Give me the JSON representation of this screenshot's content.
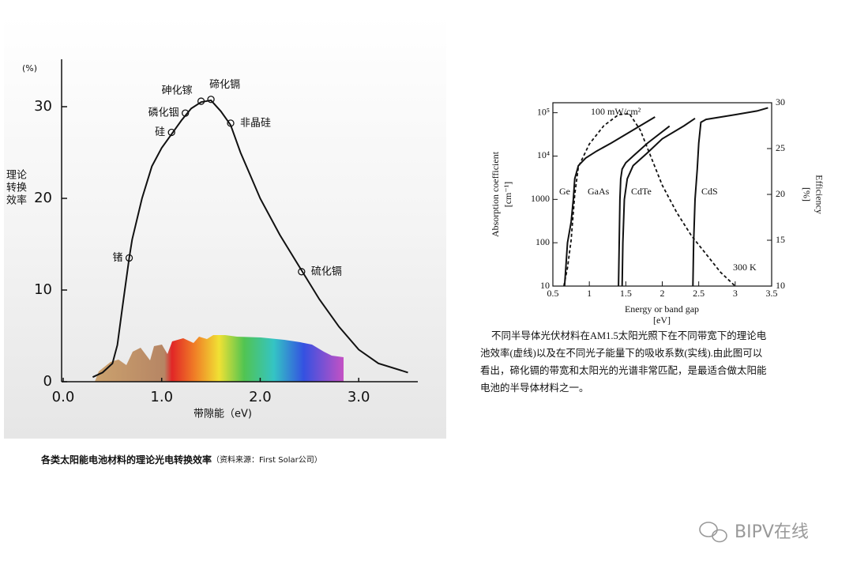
{
  "chart_data": [
    {
      "type": "line",
      "y_unit": "(%)",
      "ylabel": [
        "理论",
        "转换",
        "效率"
      ],
      "xlabel": "带隙能（eV)",
      "xlim": [
        0,
        3.6
      ],
      "ylim": [
        0,
        35
      ],
      "xticks": [
        {
          "value": 0,
          "label": "0.0"
        },
        {
          "value": 1,
          "label": "1.0"
        },
        {
          "value": 2,
          "label": "2.0"
        },
        {
          "value": 3,
          "label": "3.0"
        }
      ],
      "yticks": [
        0,
        10,
        20,
        30
      ],
      "series": [
        {
          "color": "#111111",
          "x": [
            0.3,
            0.4,
            0.5,
            0.55,
            0.6,
            0.67,
            0.7,
            0.8,
            0.9,
            1.0,
            1.1,
            1.2,
            1.3,
            1.4,
            1.5,
            1.6,
            1.7,
            1.8,
            1.9,
            2.0,
            2.2,
            2.4,
            2.6,
            2.8,
            3.0,
            3.2,
            3.5
          ],
          "values": [
            0.5,
            1,
            2,
            4,
            8,
            13.5,
            15.5,
            20,
            23.5,
            25.5,
            27,
            28.5,
            29.8,
            30.5,
            30.7,
            29.5,
            28,
            25,
            22.5,
            20,
            16,
            12.5,
            9,
            6,
            3.5,
            2,
            1
          ]
        }
      ],
      "points": {
        "labels": [
          "锗",
          "硅",
          "磷化铟",
          "砷化镓",
          "碲化镉",
          "非晶硅",
          "硫化镉"
        ],
        "x": [
          0.67,
          1.1,
          1.24,
          1.4,
          1.5,
          1.7,
          2.42
        ],
        "values": [
          13.5,
          27.2,
          29.3,
          30.6,
          30.8,
          28.2,
          12
        ]
      },
      "caption": {
        "title": "各类太阳能电池材料的理论光电转换效率",
        "source": "（资料来源：First Solar公司）"
      }
    },
    {
      "type": "line",
      "log_y": true,
      "ylabel": [
        "Absorption coefficient",
        "[cm⁻¹]"
      ],
      "y2label": [
        "Efficiency",
        "[%]"
      ],
      "xlabel": [
        "Energy or band gap",
        "[eV]"
      ],
      "xlim": [
        0.5,
        3.5
      ],
      "ylim": [
        10,
        170000
      ],
      "y2lim": [
        10,
        30
      ],
      "xticks": [
        0.5,
        1,
        1.5,
        2,
        2.5,
        3,
        3.5
      ],
      "yticks": [
        10,
        100,
        1000,
        {
          "value": 10000,
          "label": "10⁴"
        },
        {
          "value": 100000,
          "label": "10⁵"
        }
      ],
      "y2ticks": [
        10,
        15,
        20,
        25,
        30
      ],
      "annotations": [
        "100 mW/cm²",
        "300 K"
      ],
      "series": [
        {
          "name": "Ge",
          "color": "#111111",
          "x": [
            0.66,
            0.68,
            0.7,
            0.75,
            0.78,
            0.8,
            0.85,
            0.95,
            1.1,
            1.3,
            1.6,
            1.9
          ],
          "values": [
            10,
            30,
            100,
            300,
            1000,
            3000,
            6000,
            9000,
            13000,
            20000,
            40000,
            80000
          ]
        },
        {
          "name": "GaAs",
          "color": "#111111",
          "x": [
            1.4,
            1.41,
            1.42,
            1.43,
            1.45,
            1.5,
            1.6,
            1.8,
            2.1
          ],
          "values": [
            10,
            100,
            1000,
            3000,
            5000,
            7000,
            10000,
            20000,
            49000
          ]
        },
        {
          "name": "CdTe",
          "color": "#111111",
          "x": [
            1.45,
            1.46,
            1.48,
            1.52,
            1.6,
            1.8,
            2.0,
            2.3,
            2.45
          ],
          "values": [
            10,
            100,
            1000,
            3000,
            6000,
            12000,
            25000,
            50000,
            74000
          ]
        },
        {
          "name": "CdS",
          "color": "#111111",
          "x": [
            2.42,
            2.43,
            2.45,
            2.48,
            2.5,
            2.53,
            2.6,
            3.0,
            3.3,
            3.45
          ],
          "values": [
            10,
            100,
            1000,
            5000,
            20000,
            60000,
            70000,
            90000,
            110000,
            130000
          ]
        },
        {
          "axis": "y2",
          "dash": true,
          "color": "#111111",
          "x": [
            0.65,
            0.7,
            0.75,
            0.8,
            0.85,
            1.0,
            1.2,
            1.4,
            1.55,
            1.7,
            1.85,
            2.0,
            2.2,
            2.4,
            2.6,
            2.8,
            3.0
          ],
          "values": [
            10,
            12,
            15,
            20,
            23,
            25.5,
            27.5,
            28.7,
            28.8,
            27,
            24,
            21,
            18,
            15.5,
            13.5,
            11.5,
            10
          ]
        }
      ],
      "caption": [
        "不同半导体光伏材料在AM1.5太阳光照下在不同带宽下的理论电",
        "池效率(虚线)以及在不同光子能量下的吸收系数(实线).由此图可以",
        "看出，碲化镉的带宽和太阳光的光谱非常匹配，是最适合做太阳能",
        "电池的半导体材料之一。"
      ]
    }
  ],
  "watermark": "BIPV在线"
}
